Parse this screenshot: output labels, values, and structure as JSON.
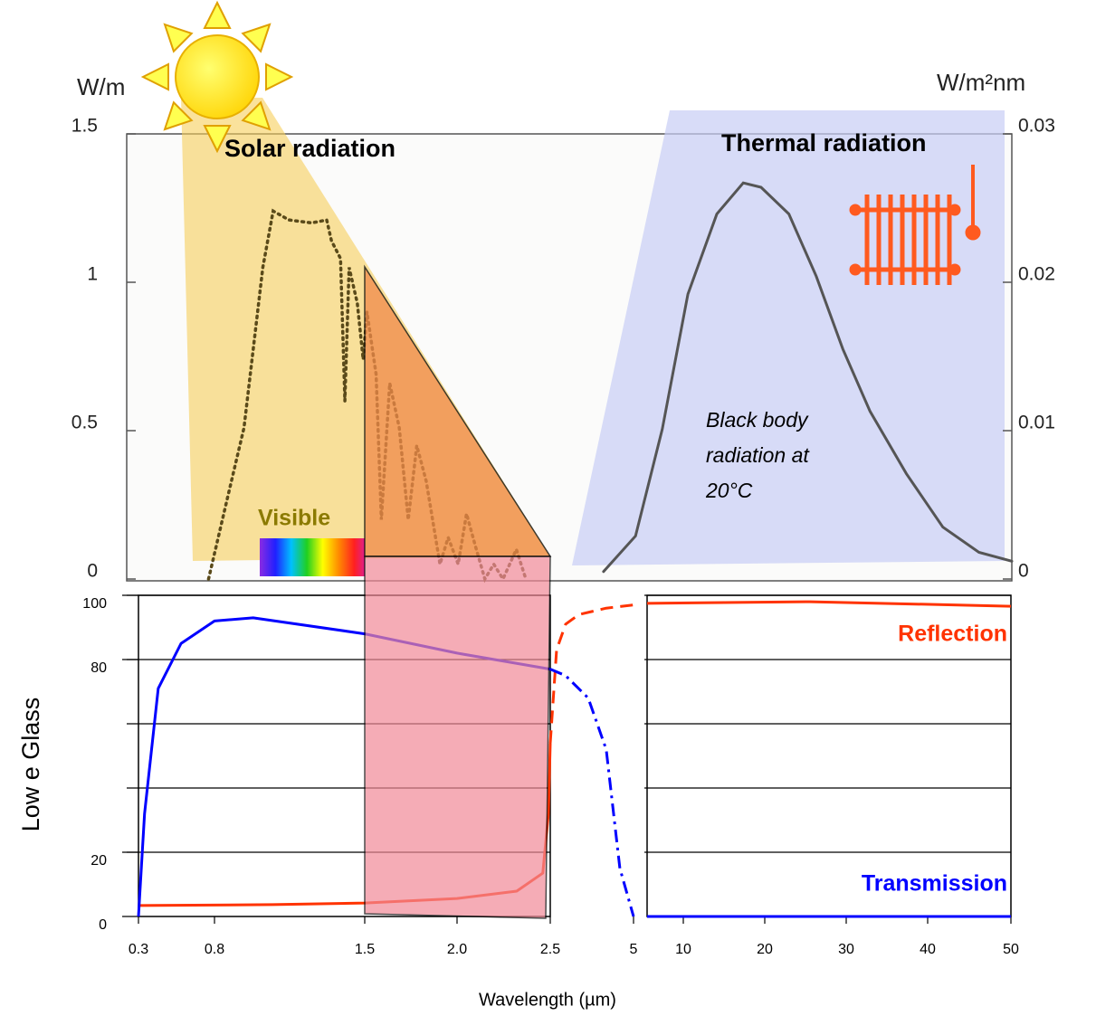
{
  "chart_data": [
    {
      "type": "line",
      "y_label": "W/m",
      "y2_label": "W/m²nm",
      "xscale": "log",
      "xlim": [
        0.2,
        45
      ],
      "ylim": [
        0,
        1.5
      ],
      "yticks": [
        0,
        0.5,
        1,
        1.5
      ],
      "y2lim": [
        0,
        0.03
      ],
      "y2ticks": [
        0,
        0.01,
        0.02,
        0.03
      ],
      "annotations": {
        "solar": "Solar radiation",
        "thermal": "Thermal radiation",
        "black_body": [
          "Black body",
          "radiation at",
          "20°C"
        ],
        "visible": "Visible"
      },
      "series": [
        {
          "color": "#5a4a1a",
          "style": "dotted",
          "x": [
            0.33,
            0.37,
            0.41,
            0.46,
            0.49,
            0.54,
            0.62,
            0.68,
            0.7,
            0.74,
            0.76,
            0.78,
            0.82,
            0.85,
            0.87,
            0.92,
            0.95,
            1.0,
            1.06,
            1.12,
            1.18,
            1.25,
            1.36,
            1.43,
            1.52,
            1.6,
            1.69,
            1.79,
            1.89,
            2.0,
            2.17,
            2.3
          ],
          "values": [
            0,
            0.27,
            0.51,
            1.05,
            1.24,
            1.21,
            1.2,
            1.21,
            1.14,
            1.08,
            0.6,
            1.05,
            0.93,
            0.74,
            0.9,
            0.69,
            0.2,
            0.66,
            0.51,
            0.2,
            0.45,
            0.33,
            0.05,
            0.14,
            0.05,
            0.22,
            0.11,
            0,
            0.05,
            0,
            0.1,
            0
          ]
        },
        {
          "color": "#555555",
          "style": "solid",
          "axis": "y2",
          "x": [
            3.7,
            4.5,
            5.3,
            6.2,
            7.4,
            8.7,
            9.7,
            11.5,
            13.6,
            16,
            18.9,
            23.6,
            29.5,
            36.8,
            45
          ],
          "values": [
            0.0005,
            0.0029,
            0.0101,
            0.0192,
            0.0246,
            0.0267,
            0.0264,
            0.0246,
            0.0204,
            0.0155,
            0.0113,
            0.0071,
            0.0035,
            0.0018,
            0.0012
          ]
        }
      ]
    },
    {
      "type": "line",
      "y_label": "Low e Glass",
      "x_label": "Wavelength (µm)",
      "ylim": [
        0,
        100
      ],
      "yticks": [
        0,
        20,
        80,
        100
      ],
      "ygrid": [
        20,
        40,
        60,
        80,
        100
      ],
      "panels": [
        {
          "xlim": [
            0.3,
            2.5
          ],
          "xticks": [
            0.3,
            0.8,
            1.5,
            {
              "value": 2,
              "label": "2.0"
            },
            2.5
          ]
        },
        {
          "xlim": [
            2.5,
            5
          ],
          "xticks": [
            5
          ]
        },
        {
          "xlim": [
            5,
            50
          ],
          "xticks": [
            10,
            20,
            30,
            40,
            50
          ]
        }
      ],
      "series": [
        {
          "name": "Reflection",
          "color": "#ff3300",
          "segments": [
            {
              "style": "solid",
              "x": [
                0.3,
                1.07,
                1.5,
                2.0,
                2.32,
                2.46,
                2.49,
                2.5
              ],
              "values": [
                3.4,
                3.7,
                4.2,
                5.6,
                7.9,
                13.5,
                32,
                54
              ]
            },
            {
              "style": "dashed",
              "x": [
                2.5,
                2.69,
                2.96,
                3.36,
                4.18,
                5
              ],
              "values": [
                54,
                83,
                91,
                94,
                96,
                97
              ]
            },
            {
              "style": "solid",
              "x": [
                5,
                25.6,
                50
              ],
              "values": [
                97.5,
                98,
                96.6
              ]
            }
          ]
        },
        {
          "name": "Transmission",
          "color": "#0000ff",
          "segments": [
            {
              "style": "solid",
              "x": [
                0.3,
                0.34,
                0.43,
                0.58,
                0.8,
                0.98,
                1.5,
                2.0,
                2.5
              ],
              "values": [
                0,
                32,
                71,
                85,
                92,
                93,
                88,
                82,
                77
              ]
            },
            {
              "style": "dashdot",
              "x": [
                2.5,
                2.96,
                3.64,
                4.18,
                4.59,
                5
              ],
              "values": [
                77,
                75,
                68,
                52,
                15,
                0
              ]
            },
            {
              "style": "solid",
              "x": [
                5,
                50
              ],
              "values": [
                0,
                0
              ]
            }
          ]
        }
      ]
    }
  ]
}
